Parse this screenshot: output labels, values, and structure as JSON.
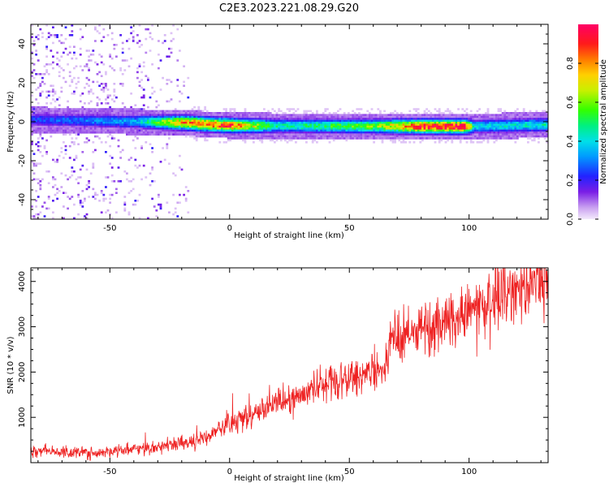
{
  "figure": {
    "title": "C2E3.2023.221.08.29.G20"
  },
  "chart_data": [
    {
      "type": "heatmap",
      "xlabel": "Height of straight line (km)",
      "ylabel": "Frequency (Hz)",
      "xlim": [
        -83,
        133
      ],
      "ylim": [
        -50,
        50
      ],
      "x_ticks": [
        -50,
        0,
        50,
        100
      ],
      "x_tick_labels": [
        "-50",
        "0",
        "50",
        "100"
      ],
      "y_ticks": [
        -40,
        -20,
        0,
        20,
        40
      ],
      "y_tick_labels": [
        "-40",
        "-20",
        "0",
        "20",
        "40"
      ],
      "colorbar": {
        "label": "Normalized spectral amplitude",
        "range": [
          0,
          1
        ],
        "ticks": [
          0.0,
          0.2,
          0.4,
          0.6,
          0.8
        ],
        "tick_labels": [
          "0.0",
          "0.2",
          "0.4",
          "0.6",
          "0.8"
        ],
        "colormap": "rainbow (white-purple-blue-cyan-green-yellow-orange-red-magenta)"
      },
      "band_center_hz": [
        {
          "x": -80,
          "f": 1.5
        },
        {
          "x": -40,
          "f": 0.5
        },
        {
          "x": -20,
          "f": 0
        },
        {
          "x": 0,
          "f": -1.5
        },
        {
          "x": 50,
          "f": -1.8
        },
        {
          "x": 100,
          "f": -2
        },
        {
          "x": 133,
          "f": -1
        }
      ],
      "peak_amplitude": [
        {
          "x": -80,
          "a": 0.25
        },
        {
          "x": -40,
          "a": 0.35
        },
        {
          "x": -18,
          "a": 0.85
        },
        {
          "x": 0,
          "a": 0.9
        },
        {
          "x": 20,
          "a": 0.45
        },
        {
          "x": 60,
          "a": 0.6
        },
        {
          "x": 80,
          "a": 0.95
        },
        {
          "x": 98,
          "a": 0.98
        },
        {
          "x": 102,
          "a": 0.4
        },
        {
          "x": 133,
          "a": 0.45
        }
      ],
      "band_halfwidth_hz": 3,
      "broadband_noise_region_km": [
        -83,
        -17
      ]
    },
    {
      "type": "line",
      "xlabel": "Height of straight line (km)",
      "ylabel": "SNR (10 * v/v)",
      "xlim": [
        -83,
        133
      ],
      "ylim": [
        0,
        4300
      ],
      "x_ticks": [
        -50,
        0,
        50,
        100
      ],
      "x_tick_labels": [
        "-50",
        "0",
        "50",
        "100"
      ],
      "y_ticks": [
        1000,
        2000,
        3000,
        4000
      ],
      "y_tick_labels": [
        "1000",
        "2000",
        "3000",
        "4000"
      ],
      "color": "#ee2222",
      "trend": [
        {
          "x": -83,
          "y": 250
        },
        {
          "x": -55,
          "y": 220
        },
        {
          "x": -30,
          "y": 350
        },
        {
          "x": -15,
          "y": 450
        },
        {
          "x": 0,
          "y": 850
        },
        {
          "x": 20,
          "y": 1300
        },
        {
          "x": 40,
          "y": 1700
        },
        {
          "x": 66,
          "y": 2100
        },
        {
          "x": 67,
          "y": 2700
        },
        {
          "x": 90,
          "y": 3100
        },
        {
          "x": 110,
          "y": 3600
        },
        {
          "x": 133,
          "y": 4000
        }
      ]
    }
  ]
}
